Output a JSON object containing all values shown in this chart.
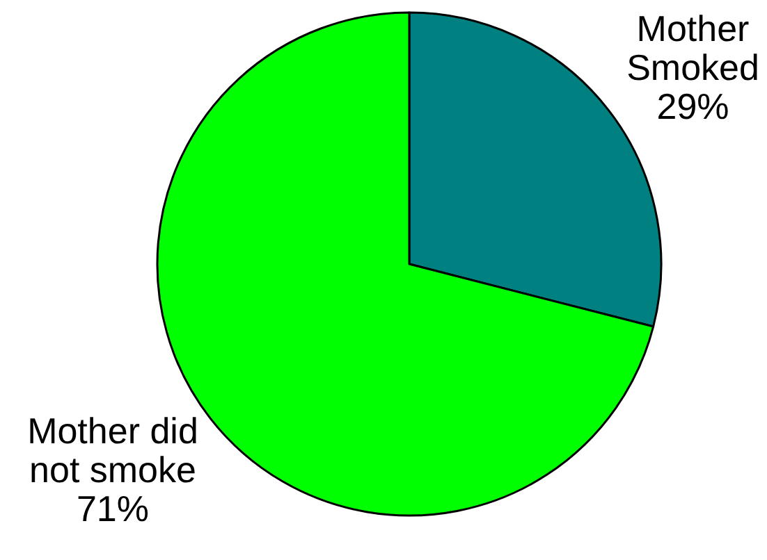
{
  "chart_data": {
    "type": "pie",
    "categories": [
      "Mother Smoked",
      "Mother did not smoke"
    ],
    "values": [
      29,
      71
    ],
    "colors": [
      "#008080",
      "#00ff00"
    ],
    "value_labels": [
      "29%",
      "71%"
    ]
  }
}
